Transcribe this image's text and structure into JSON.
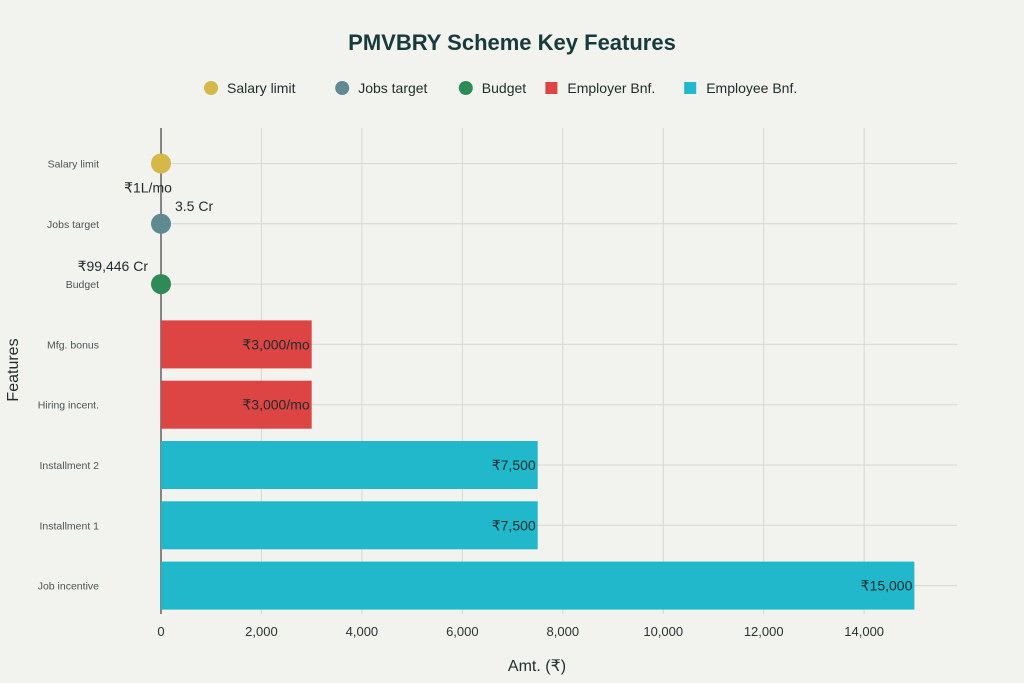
{
  "chart_data": {
    "type": "bar",
    "orientation": "horizontal",
    "title": "PMVBRY Scheme Key Features",
    "xlabel": "Amt. (₹)",
    "ylabel": "Features",
    "xlim": [
      0,
      16000
    ],
    "xticks": [
      0,
      2000,
      4000,
      6000,
      8000,
      10000,
      12000,
      14000
    ],
    "xtick_labels": [
      "0",
      "2,000",
      "4,000",
      "6,000",
      "8,000",
      "10,000",
      "12,000",
      "14,000"
    ],
    "grid": true,
    "legend_position": "top",
    "categories": [
      "Salary limit",
      "Jobs target",
      "Budget",
      "Mfg. bonus",
      "Hiring incent.",
      "Installment 2",
      "Installment 1",
      "Job incentive"
    ],
    "series": [
      {
        "name": "Salary limit",
        "color": "#d4b94a",
        "marker": "circle",
        "points": [
          {
            "category": "Salary limit",
            "value": 0,
            "label": "₹1L/mo"
          }
        ]
      },
      {
        "name": "Jobs target",
        "color": "#5f8a92",
        "marker": "circle",
        "points": [
          {
            "category": "Jobs target",
            "value": 0,
            "label": "3.5 Cr"
          }
        ]
      },
      {
        "name": "Budget",
        "color": "#2e8b57",
        "marker": "circle",
        "points": [
          {
            "category": "Budget",
            "value": 0,
            "label": "₹99,446 Cr"
          }
        ]
      },
      {
        "name": "Employer Bnf.",
        "color": "#dd4444",
        "marker": "bar",
        "points": [
          {
            "category": "Mfg. bonus",
            "value": 3000,
            "label": "₹3,000/mo"
          },
          {
            "category": "Hiring incent.",
            "value": 3000,
            "label": "₹3,000/mo"
          }
        ]
      },
      {
        "name": "Employee Bnf.",
        "color": "#22b8cc",
        "marker": "bar",
        "points": [
          {
            "category": "Installment 2",
            "value": 7500,
            "label": "₹7,500"
          },
          {
            "category": "Installment 1",
            "value": 7500,
            "label": "₹7,500"
          },
          {
            "category": "Job incentive",
            "value": 15000,
            "label": "₹15,000"
          }
        ]
      }
    ]
  }
}
